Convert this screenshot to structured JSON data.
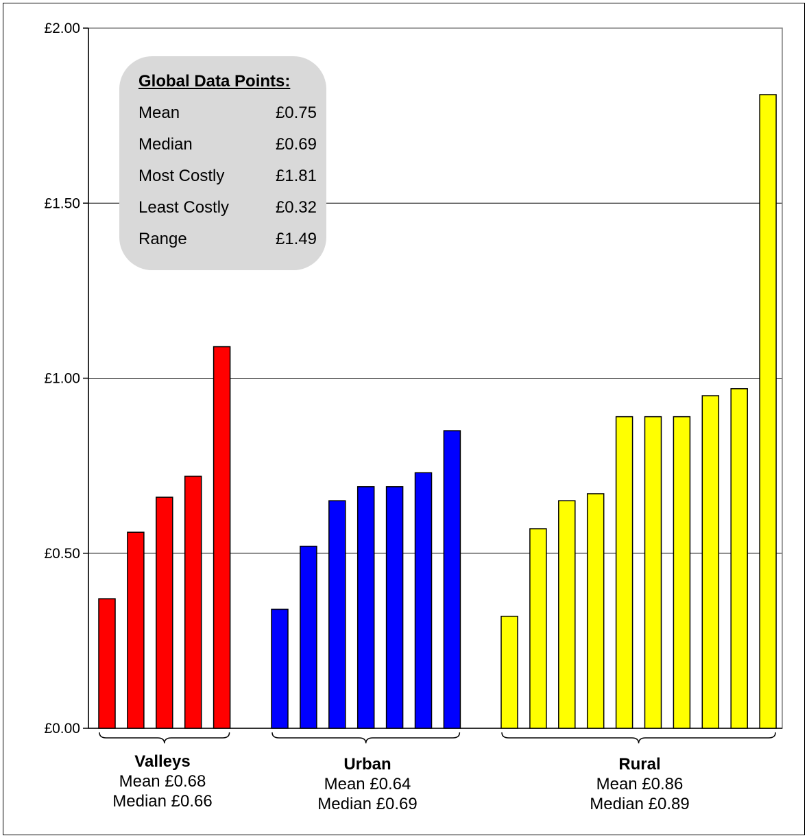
{
  "chart_data": {
    "type": "bar",
    "ylim": [
      0,
      2
    ],
    "y_ticks": [
      "£0.00",
      "£0.50",
      "£1.00",
      "£1.50",
      "£2.00"
    ],
    "y_tick_values": [
      0,
      0.5,
      1.0,
      1.5,
      2.0
    ],
    "grid": true,
    "groups": [
      {
        "name": "Valleys",
        "color": "#ff0000",
        "values": [
          0.37,
          0.56,
          0.66,
          0.72,
          1.09
        ],
        "mean_text": "Mean £0.68",
        "median_text": "Median £0.66"
      },
      {
        "name": "Urban",
        "color": "#0000ff",
        "values": [
          0.34,
          0.52,
          0.65,
          0.69,
          0.69,
          0.73,
          0.85
        ],
        "mean_text": "Mean £0.64",
        "median_text": "Median £0.69"
      },
      {
        "name": "Rural",
        "color": "#ffff00",
        "values": [
          0.32,
          0.57,
          0.65,
          0.67,
          0.89,
          0.89,
          0.89,
          0.95,
          0.97,
          1.81
        ],
        "mean_text": "Mean £0.86",
        "median_text": "Median £0.89"
      }
    ]
  },
  "stats_box": {
    "title": "Global Data Points:",
    "rows": [
      {
        "label": "Mean",
        "value": "£0.75"
      },
      {
        "label": "Median",
        "value": "£0.69"
      },
      {
        "label": "Most Costly",
        "value": "£1.81"
      },
      {
        "label": "Least Costly",
        "value": "£0.32"
      },
      {
        "label": "Range",
        "value": "£1.49"
      }
    ]
  }
}
